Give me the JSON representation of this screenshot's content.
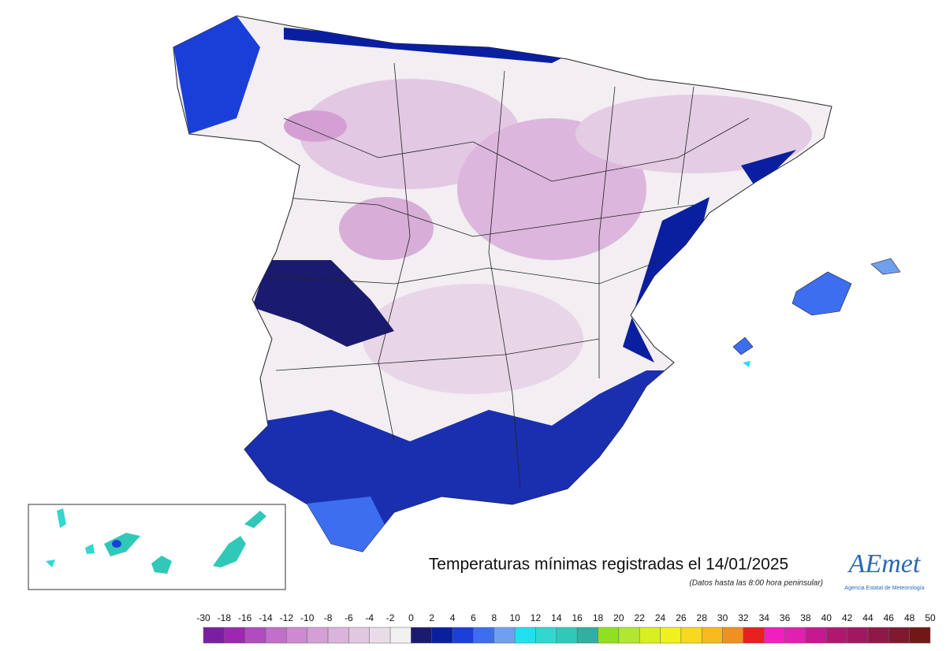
{
  "title": "Temperaturas mínimas registradas el 14/01/2025",
  "subtitle": "(Datos hasta las 8:00 hora peninsular)",
  "logo": {
    "name": "AEmet",
    "caption": "Agencia Estatal de Meteorología"
  },
  "legend": {
    "ticks": [
      -30,
      -18,
      -16,
      -14,
      -12,
      -10,
      -8,
      -6,
      -4,
      -2,
      0,
      2,
      4,
      6,
      8,
      10,
      12,
      14,
      16,
      18,
      20,
      22,
      24,
      26,
      28,
      30,
      32,
      34,
      36,
      38,
      40,
      42,
      44,
      46,
      48,
      50
    ],
    "colors": [
      "#7b1fa2",
      "#9c27b0",
      "#b04cc0",
      "#c070c8",
      "#cc8ad0",
      "#d4a0d4",
      "#dab4da",
      "#e0c8e0",
      "#e8dce8",
      "#f0f0f0",
      "#1a1a6e",
      "#0a1fa0",
      "#1a3fd8",
      "#3d6ef0",
      "#6fa0f0",
      "#20e0f0",
      "#30d8d0",
      "#30c8b8",
      "#30b0a0",
      "#90e020",
      "#b0e830",
      "#d8f020",
      "#f0f020",
      "#f8d820",
      "#f8b820",
      "#f09020",
      "#e82020",
      "#f020c0",
      "#e020b0",
      "#c81890",
      "#b01870",
      "#a01860",
      "#901848",
      "#801830",
      "#701818"
    ]
  }
}
